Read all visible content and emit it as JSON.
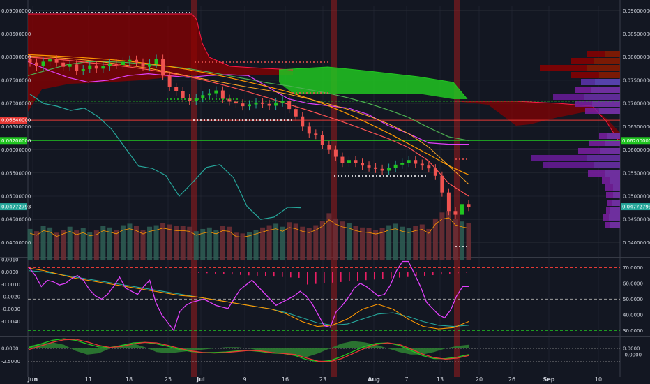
{
  "chart_data": [
    {
      "type": "candlestick",
      "panel": "price",
      "y_scale": "linear",
      "ylim": [
        0.0363,
        0.0911
      ],
      "right_axis_ticks": [
        "0.09000000",
        "0.08500000",
        "0.08000000",
        "0.07500000",
        "0.07000000",
        "0.06500000",
        "0.06000000",
        "0.05500000",
        "0.05000000",
        "0.04500000",
        "0.04000000"
      ],
      "left_axis_ticks": [
        "0.09000000",
        "0.08500000",
        "0.08000000",
        "0.07500000",
        "0.07000000",
        "0.06500000",
        "0.06000000",
        "0.05500000",
        "0.05000000",
        "0.04500000",
        "0.04000000"
      ],
      "tick_values": [
        0.09,
        0.085,
        0.08,
        0.075,
        0.07,
        0.065,
        0.06,
        0.055,
        0.05,
        0.045,
        0.04
      ],
      "price_tags": [
        {
          "label": "0.06640000",
          "value": 0.0664,
          "color": "#e53935",
          "side": "left"
        },
        {
          "label": "0.06200000",
          "value": 0.062,
          "color": "#21c521",
          "side": "left"
        },
        {
          "label": "0.04772793",
          "value": 0.04773,
          "color": "#26a69a",
          "side": "left"
        },
        {
          "label": "0.06200000",
          "value": 0.062,
          "color": "#21c521",
          "side": "right"
        },
        {
          "label": "0.04772793",
          "value": 0.04773,
          "color": "#26a69a",
          "side": "right"
        }
      ],
      "candles_close": [
        0.0788,
        0.078,
        0.079,
        0.0795,
        0.0788,
        0.0779,
        0.0784,
        0.077,
        0.0774,
        0.0782,
        0.0775,
        0.078,
        0.0786,
        0.0783,
        0.079,
        0.0794,
        0.0788,
        0.0779,
        0.0786,
        0.0796,
        0.076,
        0.0735,
        0.0726,
        0.0712,
        0.0705,
        0.0712,
        0.0718,
        0.0722,
        0.0728,
        0.071,
        0.0704,
        0.07,
        0.0694,
        0.0698,
        0.0702,
        0.0699,
        0.0695,
        0.0702,
        0.0706,
        0.0688,
        0.0672,
        0.065,
        0.0635,
        0.0632,
        0.061,
        0.06,
        0.0585,
        0.0572,
        0.0578,
        0.0572,
        0.0566,
        0.0562,
        0.0559,
        0.0555,
        0.0561,
        0.0568,
        0.0572,
        0.0578,
        0.057,
        0.0566,
        0.056,
        0.0544,
        0.0508,
        0.0468,
        0.046,
        0.0483,
        0.0477
      ],
      "volume_ylim": [
        0,
        0.0067
      ],
      "volume": [
        0.0041,
        0.0038,
        0.0045,
        0.0043,
        0.0036,
        0.004,
        0.0044,
        0.0039,
        0.0042,
        0.0037,
        0.0039,
        0.0045,
        0.0043,
        0.004,
        0.0046,
        0.0048,
        0.0045,
        0.004,
        0.0044,
        0.0046,
        0.0049,
        0.0047,
        0.0045,
        0.0045,
        0.0044,
        0.0038,
        0.0041,
        0.0043,
        0.004,
        0.0045,
        0.0044,
        0.0036,
        0.0035,
        0.0037,
        0.004,
        0.0043,
        0.0046,
        0.0048,
        0.0044,
        0.005,
        0.0048,
        0.0044,
        0.0042,
        0.0046,
        0.0052,
        0.0062,
        0.0055,
        0.0051,
        0.0049,
        0.0045,
        0.0043,
        0.0042,
        0.004,
        0.0042,
        0.0046,
        0.0048,
        0.0044,
        0.0042,
        0.0045,
        0.0047,
        0.0041,
        0.0055,
        0.0063,
        0.0065,
        0.0054,
        0.0051,
        0.0049
      ],
      "lines": {
        "ma_orange": [
          0.0805,
          0.0803,
          0.0801,
          0.0798,
          0.0795,
          0.0791,
          0.0786,
          0.078,
          0.0773,
          0.0765,
          0.0756,
          0.0746,
          0.0736,
          0.0725,
          0.0711,
          0.0695,
          0.0677,
          0.0657,
          0.0636,
          0.0613,
          0.059,
          0.0566,
          0.0546
        ],
        "ma_orange2": [
          0.0802,
          0.08,
          0.0797,
          0.0793,
          0.0788,
          0.0782,
          0.0776,
          0.0768,
          0.0759,
          0.0751,
          0.0743,
          0.0735,
          0.0728,
          0.072,
          0.071,
          0.0699,
          0.0687,
          0.0673,
          0.0656,
          0.0635,
          0.0606,
          0.0566,
          0.0526
        ],
        "ma_green": [
          0.076,
          0.0772,
          0.0784,
          0.079,
          0.079,
          0.0788,
          0.0784,
          0.078,
          0.0775,
          0.0768,
          0.076,
          0.0752,
          0.0744,
          0.0738,
          0.073,
          0.0722,
          0.0712,
          0.07,
          0.0686,
          0.067,
          0.0648,
          0.0628,
          0.062
        ],
        "ma_magenta": [
          0.079,
          0.0772,
          0.0756,
          0.0746,
          0.075,
          0.076,
          0.0764,
          0.076,
          0.0756,
          0.076,
          0.0762,
          0.076,
          0.0735,
          0.071,
          0.07,
          0.0695,
          0.069,
          0.0676,
          0.0652,
          0.0635,
          0.0615,
          0.0612,
          0.0612
        ],
        "ma_red": [
          0.08,
          0.0797,
          0.0793,
          0.0788,
          0.0784,
          0.0779,
          0.0773,
          0.0766,
          0.0758,
          0.0748,
          0.0737,
          0.0725,
          0.0712,
          0.0698,
          0.0685,
          0.0671,
          0.0656,
          0.064,
          0.0624,
          0.0605,
          0.0576,
          0.0528,
          0.05
        ],
        "cyan_lagging": [
          0.072,
          0.07,
          0.0694,
          0.0685,
          0.069,
          0.0672,
          0.0645,
          0.0605,
          0.0565,
          0.056,
          0.0545,
          0.05,
          0.053,
          0.0562,
          0.0568,
          0.054,
          0.0478,
          0.045,
          0.0455,
          0.0476,
          0.0475
        ]
      },
      "reference_lines": [
        {
          "value": 0.0664,
          "color": "#e53935"
        },
        {
          "value": 0.062,
          "color": "#21c521"
        },
        {
          "value": 0.0705,
          "color": "#21c521",
          "style": "dashed"
        }
      ]
    },
    {
      "type": "line",
      "panel": "macd",
      "left_axis_ticks": [
        "0.0010",
        "0.0000",
        "-0.0010",
        "-0.0020",
        "-0.0030",
        "-0.0040"
      ],
      "left_tick_values": [
        0.001,
        0,
        -0.001,
        -0.002,
        -0.003,
        -0.004
      ],
      "right_axis_ticks": [
        "70.0000",
        "60.0000",
        "50.0000",
        "40.0000",
        "30.0000"
      ],
      "right_tick_values": [
        70,
        60,
        50,
        40,
        30
      ],
      "rsi_ylim": [
        27,
        76
      ],
      "macd_ylim": [
        -0.0051,
        0.0011
      ],
      "rsi": [
        70,
        65,
        58,
        62,
        61,
        59,
        60,
        63,
        65,
        62,
        56,
        52,
        50,
        53,
        58,
        64,
        57,
        55,
        53,
        58,
        62,
        48,
        40,
        35,
        30,
        42,
        46,
        48,
        49,
        50,
        48,
        46,
        45,
        44,
        50,
        56,
        59,
        62,
        58,
        54,
        50,
        46,
        48,
        50,
        52,
        55,
        52,
        47,
        40,
        33,
        32,
        42,
        46,
        51,
        57,
        60,
        58,
        55,
        52,
        53,
        59,
        68,
        74,
        74,
        66,
        58,
        48,
        44,
        40,
        38,
        43,
        52,
        58,
        58
      ],
      "macd_line": [
        0.0003,
        0.0001,
        -0.0002,
        -0.0005,
        -0.0007,
        -0.0009,
        -0.0011,
        -0.0013,
        -0.0015,
        -0.0017,
        -0.0019,
        -0.002,
        -0.0022,
        -0.0024,
        -0.0026,
        -0.0028,
        -0.003,
        -0.0034,
        -0.004,
        -0.0044,
        -0.0043,
        -0.0038,
        -0.003,
        -0.0026,
        -0.003,
        -0.0038,
        -0.0044,
        -0.0046,
        -0.0045,
        -0.004
      ],
      "signal_line": [
        0.0001,
        0.0,
        -0.0002,
        -0.0004,
        -0.0006,
        -0.0008,
        -0.001,
        -0.0012,
        -0.0014,
        -0.0016,
        -0.0018,
        -0.002,
        -0.0022,
        -0.0024,
        -0.0026,
        -0.0028,
        -0.003,
        -0.0033,
        -0.0037,
        -0.0041,
        -0.0043,
        -0.0042,
        -0.0038,
        -0.0034,
        -0.0033,
        -0.0036,
        -0.004,
        -0.0043,
        -0.0044,
        -0.0043
      ],
      "reference_lines": [
        {
          "value": 70,
          "color": "#e53935",
          "style": "dashed"
        },
        {
          "value": 50,
          "color": "#9e9e9e",
          "style": "dashed"
        },
        {
          "value": 30,
          "color": "#21c521",
          "style": "dashed"
        }
      ]
    },
    {
      "type": "area",
      "panel": "oscillator",
      "left_axis_ticks": [
        "0.0000",
        "-2.5000"
      ],
      "left_tick_values": [
        0,
        -2.5
      ],
      "right_axis_ticks": [
        "0.0000",
        "-0.0000"
      ],
      "ylim": [
        -5.2,
        2.2
      ],
      "osc": [
        0.2,
        0.9,
        1.6,
        1.9,
        1.6,
        0.9,
        0.3,
        0.2,
        0.6,
        1.1,
        1.2,
        0.9,
        0.4,
        -0.2,
        -0.6,
        -0.8,
        -0.8,
        -0.7,
        -0.5,
        -0.4,
        -0.6,
        -0.9,
        -1.0,
        -1.4,
        -2.2,
        -2.6,
        -2.4,
        -1.6,
        -0.6,
        0.4,
        1.0,
        1.1,
        0.6,
        -0.4,
        -1.4,
        -2.0,
        -2.0,
        -1.7,
        -1.2
      ],
      "osc_signal": [
        -0.2,
        0.5,
        1.2,
        1.7,
        1.8,
        1.3,
        0.6,
        0.2,
        0.4,
        0.9,
        1.2,
        1.1,
        0.6,
        0.0,
        -0.5,
        -0.8,
        -0.9,
        -0.8,
        -0.6,
        -0.4,
        -0.5,
        -0.8,
        -1.0,
        -1.2,
        -1.9,
        -2.5,
        -2.6,
        -2.0,
        -1.0,
        0.0,
        0.8,
        1.1,
        0.8,
        -0.1,
        -1.1,
        -1.8,
        -2.1,
        -1.9,
        -1.4
      ],
      "histogram": [
        0.2,
        0.4,
        0.5,
        0.3,
        -0.2,
        -0.5,
        -0.4,
        0.0,
        0.3,
        0.4,
        0.1,
        -0.3,
        -0.4,
        -0.3,
        -0.2,
        -0.1,
        0.0,
        0.1,
        0.1,
        0.0,
        -0.2,
        -0.3,
        -0.4,
        -0.6,
        -0.7,
        -0.4,
        0.0,
        0.4,
        0.6,
        0.5,
        0.3,
        0.0,
        -0.3,
        -0.5,
        -0.5,
        -0.3,
        0.0,
        0.2,
        0.3
      ]
    }
  ],
  "x_axis": {
    "labels": [
      "Jun",
      "11",
      "18",
      "25",
      "Jul",
      "9",
      "16",
      "23",
      "Aug",
      "7",
      "13",
      "20",
      "26",
      "Sep",
      "10"
    ],
    "bold": [
      "Jun",
      "Jul",
      "Aug",
      "Sep"
    ]
  },
  "colors": {
    "background": "#131722",
    "grid": "#2a2e39",
    "up": "#26a69a",
    "down": "#ef5350",
    "cloud_red": "#8b0000",
    "cloud_green": "#21c521",
    "vline_red": "#b71c1c",
    "rsi": "#e040fb"
  }
}
